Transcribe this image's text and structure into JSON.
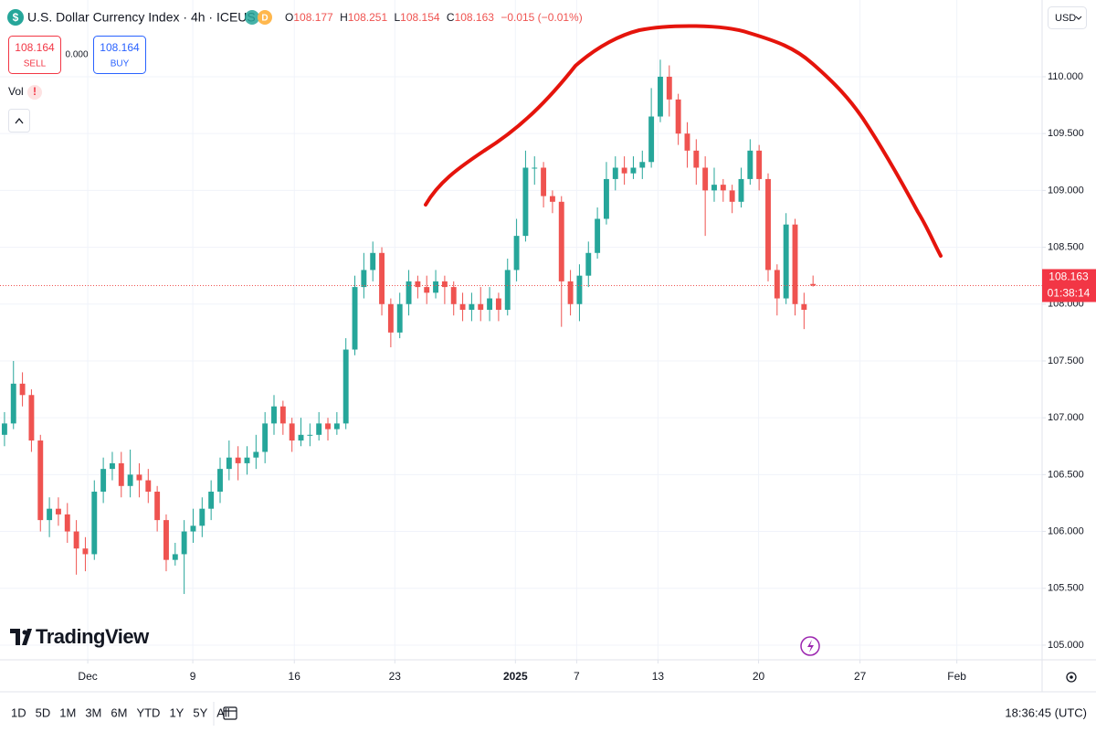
{
  "chart_data": {
    "type": "candlestick",
    "x": [
      0,
      1,
      2,
      3,
      4,
      5,
      6,
      7,
      8,
      9,
      10,
      11,
      12,
      13,
      14,
      15,
      16,
      17,
      18,
      19,
      20,
      21,
      22,
      23,
      24,
      25,
      26,
      27,
      28,
      29,
      30,
      31,
      32,
      33,
      34,
      35,
      36,
      37,
      38,
      39,
      40,
      41,
      42,
      43,
      44,
      45,
      46,
      47,
      48,
      49,
      50,
      51,
      52,
      53,
      54,
      55,
      56,
      57,
      58,
      59,
      60,
      61,
      62,
      63,
      64,
      65,
      66,
      67,
      68,
      69,
      70,
      71,
      72,
      73,
      74,
      75,
      76,
      77,
      78,
      79,
      80,
      81,
      82,
      83,
      84,
      85,
      86,
      87,
      88,
      89,
      90
    ],
    "open": [
      106.85,
      106.95,
      107.3,
      107.2,
      106.8,
      106.1,
      106.2,
      106.15,
      106.0,
      105.85,
      105.8,
      106.35,
      106.55,
      106.6,
      106.4,
      106.5,
      106.45,
      106.35,
      106.1,
      105.75,
      105.8,
      106.0,
      106.05,
      106.2,
      106.35,
      106.55,
      106.65,
      106.6,
      106.65,
      106.7,
      106.95,
      107.1,
      106.95,
      106.8,
      106.85,
      106.85,
      106.95,
      106.9,
      106.95,
      107.6,
      108.15,
      108.3,
      108.45,
      108.0,
      107.75,
      108.0,
      108.2,
      108.15,
      108.1,
      108.2,
      108.15,
      108.0,
      107.95,
      108.0,
      107.95,
      108.05,
      107.95,
      108.3,
      108.6,
      109.2,
      109.2,
      108.95,
      108.9,
      108.2,
      108.0,
      108.25,
      108.45,
      108.75,
      109.1,
      109.2,
      109.15,
      109.2,
      109.25,
      109.65,
      110.0,
      109.8,
      109.5,
      109.35,
      109.2,
      109.0,
      109.05,
      109.0,
      108.9,
      109.1,
      109.35,
      109.1,
      108.3,
      108.05,
      108.7,
      108.0,
      108.177
    ],
    "high": [
      107.05,
      107.5,
      107.4,
      107.25,
      106.85,
      106.3,
      106.3,
      106.25,
      106.1,
      105.95,
      106.45,
      106.65,
      106.7,
      106.7,
      106.72,
      106.6,
      106.55,
      106.4,
      106.15,
      105.9,
      106.1,
      106.2,
      106.3,
      106.45,
      106.65,
      106.8,
      106.75,
      106.75,
      106.85,
      107.05,
      107.2,
      107.15,
      107.0,
      107.0,
      106.95,
      107.05,
      107.0,
      107.05,
      107.7,
      108.25,
      108.45,
      108.55,
      108.5,
      108.05,
      108.1,
      108.3,
      108.25,
      108.25,
      108.3,
      108.25,
      108.2,
      108.1,
      108.1,
      108.15,
      108.15,
      108.1,
      108.4,
      108.75,
      109.35,
      109.3,
      109.25,
      109.0,
      108.95,
      108.3,
      108.35,
      108.55,
      108.85,
      109.25,
      109.3,
      109.3,
      109.3,
      109.35,
      109.9,
      110.15,
      110.1,
      109.85,
      109.6,
      109.45,
      109.3,
      109.2,
      109.1,
      109.05,
      109.2,
      109.45,
      109.4,
      109.15,
      108.35,
      108.8,
      108.75,
      108.1,
      108.251
    ],
    "low": [
      106.75,
      106.9,
      107.1,
      106.7,
      106.0,
      105.95,
      106.05,
      105.9,
      105.62,
      105.65,
      105.75,
      106.25,
      106.45,
      106.3,
      106.3,
      106.3,
      106.25,
      106.0,
      105.65,
      105.7,
      105.45,
      105.9,
      105.95,
      106.1,
      106.25,
      106.45,
      106.45,
      106.5,
      106.55,
      106.6,
      106.85,
      106.85,
      106.7,
      106.75,
      106.75,
      106.8,
      106.8,
      106.85,
      106.9,
      107.55,
      108.05,
      108.2,
      107.9,
      107.62,
      107.7,
      107.9,
      108.05,
      108.0,
      108.05,
      108.0,
      107.9,
      107.85,
      107.85,
      107.85,
      107.85,
      107.85,
      107.9,
      108.2,
      108.55,
      109.05,
      108.85,
      108.8,
      107.8,
      107.9,
      107.85,
      108.15,
      108.4,
      108.7,
      109.0,
      109.05,
      109.1,
      109.1,
      109.2,
      109.6,
      109.65,
      109.4,
      109.2,
      109.05,
      108.6,
      108.9,
      108.9,
      108.8,
      108.85,
      109.05,
      109.0,
      108.2,
      107.9,
      108.0,
      107.9,
      107.78,
      108.154
    ],
    "close": [
      106.95,
      107.3,
      107.2,
      106.8,
      106.1,
      106.2,
      106.15,
      106.0,
      105.85,
      105.8,
      106.35,
      106.55,
      106.6,
      106.4,
      106.5,
      106.45,
      106.35,
      106.1,
      105.75,
      105.8,
      106.0,
      106.05,
      106.2,
      106.35,
      106.55,
      106.65,
      106.6,
      106.65,
      106.7,
      106.95,
      107.1,
      106.95,
      106.8,
      106.85,
      106.85,
      106.95,
      106.9,
      106.95,
      107.6,
      108.15,
      108.3,
      108.45,
      108.0,
      107.75,
      108.0,
      108.2,
      108.15,
      108.1,
      108.2,
      108.15,
      108.0,
      107.95,
      108.0,
      107.95,
      108.05,
      107.95,
      108.3,
      108.6,
      109.2,
      109.2,
      108.95,
      108.9,
      108.2,
      108.0,
      108.25,
      108.45,
      108.75,
      109.1,
      109.2,
      109.15,
      109.2,
      109.25,
      109.65,
      110.0,
      109.8,
      109.5,
      109.35,
      109.2,
      109.0,
      109.05,
      109.0,
      108.9,
      109.1,
      109.35,
      109.1,
      108.3,
      108.05,
      108.7,
      108.0,
      107.95,
      108.163
    ],
    "up_color": "#26a69a",
    "down_color": "#ef5350",
    "grid": true,
    "xlim": [
      -0.5,
      115.5
    ],
    "xticks": [
      {
        "value": 9.27,
        "label": "Dec"
      },
      {
        "value": 20.96,
        "label": "9"
      },
      {
        "value": 32.26,
        "label": "16"
      },
      {
        "value": 43.45,
        "label": "23"
      },
      {
        "value": 56.87,
        "label": "2025"
      },
      {
        "value": 63.69,
        "label": "7"
      },
      {
        "value": 72.74,
        "label": "13"
      },
      {
        "value": 83.94,
        "label": "20"
      },
      {
        "value": 95.23,
        "label": "27"
      },
      {
        "value": 106.01,
        "label": "Feb"
      }
    ],
    "ylim": [
      104.871,
      110.675
    ],
    "yticks": [
      {
        "value": 105,
        "label": "105.000"
      },
      {
        "value": 105.5,
        "label": "105.500"
      },
      {
        "value": 106,
        "label": "106.000"
      },
      {
        "value": 106.5,
        "label": "106.500"
      },
      {
        "value": 107,
        "label": "107.000"
      },
      {
        "value": 107.5,
        "label": "107.500"
      },
      {
        "value": 108,
        "label": "108.000"
      },
      {
        "value": 108.5,
        "label": "108.500"
      },
      {
        "value": 109,
        "label": "109.000"
      },
      {
        "value": 109.5,
        "label": "109.500"
      },
      {
        "value": 110,
        "label": "110.000"
      }
    ]
  },
  "ui": {
    "symbol": "U.S. Dollar Currency Index · 4h · ICEUS",
    "badge": "D",
    "ohlc": [
      [
        "O",
        "108.177"
      ],
      [
        "H",
        "108.251"
      ],
      [
        "L",
        "108.154"
      ],
      [
        "C",
        "108.163"
      ]
    ],
    "change": "−0.015 (−0.01%)",
    "sell_price": "108.164",
    "sell": "SELL",
    "spread": "0.000",
    "buy_price": "108.164",
    "buy": "BUY",
    "vol": "Vol",
    "alert": "!",
    "currency": "USD",
    "price_label": "108.163",
    "countdown": "01:38:14",
    "logo": "TradingView",
    "ranges": [
      "1D",
      "5D",
      "1M",
      "3M",
      "6M",
      "YTD",
      "1Y",
      "5Y",
      "All"
    ],
    "clock": "18:36:45 (UTC)"
  }
}
